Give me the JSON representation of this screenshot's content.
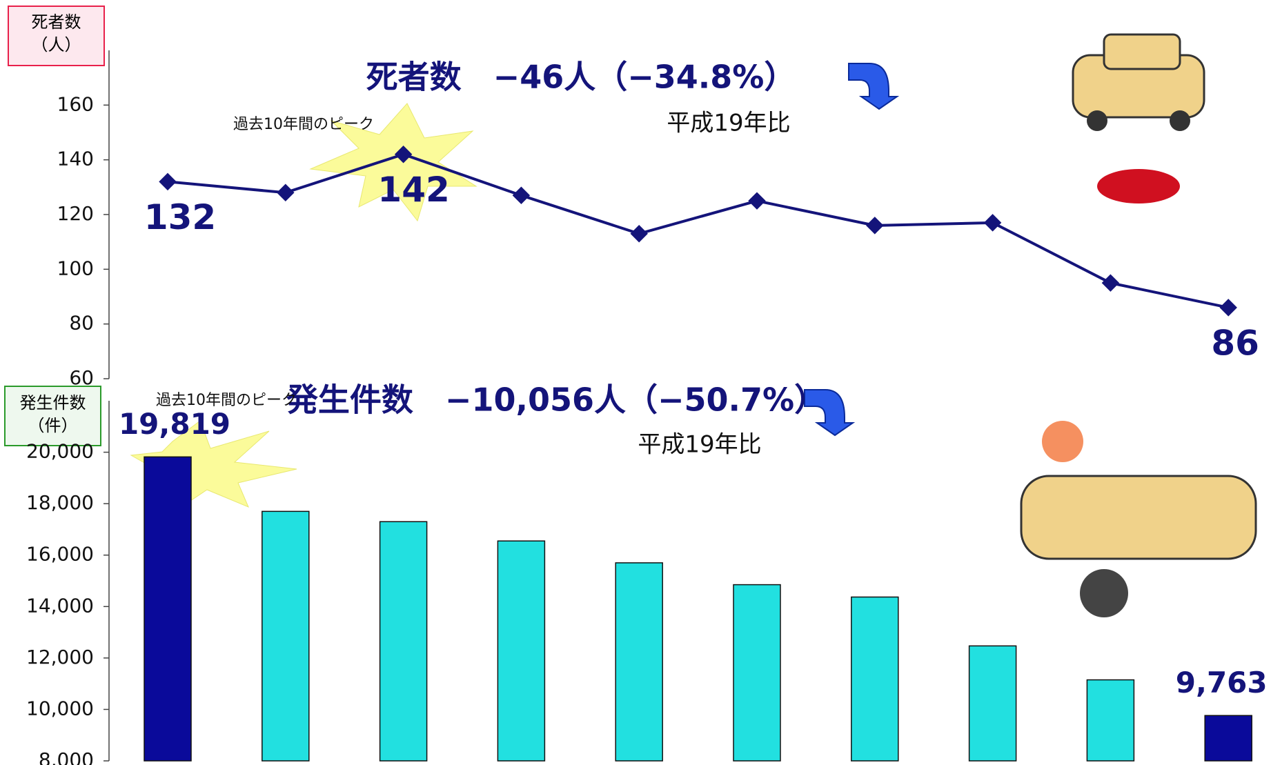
{
  "chart_data": [
    {
      "type": "line",
      "title": "死者数　−46人（−34.8%）",
      "subtitle": "平成19年比",
      "annotation": "過去10年間のピーク",
      "ylabel": [
        "死者数",
        "（人）"
      ],
      "categories": [
        null,
        null,
        null,
        null,
        null,
        null,
        null,
        null,
        null,
        null
      ],
      "values": [
        132,
        128,
        142,
        127,
        113,
        125,
        116,
        117,
        95,
        86
      ],
      "value_labels": [
        "132",
        null,
        "142",
        null,
        null,
        null,
        null,
        null,
        null,
        "86"
      ],
      "color": "#14147a",
      "ylim": [
        60,
        180
      ],
      "yticks": [
        60,
        80,
        100,
        120,
        140,
        160
      ]
    },
    {
      "type": "bar",
      "title": "発生件数　−10,056人（−50.7%）",
      "subtitle": "平成19年比",
      "annotation": "過去10年間のピーク",
      "ylabel": [
        "発生件数",
        "（件）"
      ],
      "categories": [
        null,
        null,
        null,
        null,
        null,
        null,
        null,
        null,
        null,
        null
      ],
      "values": [
        19819,
        17700,
        17300,
        16550,
        15700,
        14850,
        14370,
        12470,
        11150,
        9763
      ],
      "value_labels": [
        "19,819",
        null,
        null,
        null,
        null,
        null,
        null,
        null,
        null,
        "9,763"
      ],
      "colors": [
        "#0a0a9a",
        "#22e0e0",
        "#22e0e0",
        "#22e0e0",
        "#22e0e0",
        "#22e0e0",
        "#22e0e0",
        "#22e0e0",
        "#22e0e0",
        "#0a0a9a"
      ],
      "ylim": [
        8000,
        22000
      ],
      "yticks": [
        {
          "value": 8000,
          "label": "8,000"
        },
        {
          "value": 10000,
          "label": "10,000"
        },
        {
          "value": 12000,
          "label": "12,000"
        },
        {
          "value": 14000,
          "label": "14,000"
        },
        {
          "value": 16000,
          "label": "16,000"
        },
        {
          "value": 18000,
          "label": "18,000"
        },
        {
          "value": 20000,
          "label": "20,000"
        }
      ]
    }
  ]
}
